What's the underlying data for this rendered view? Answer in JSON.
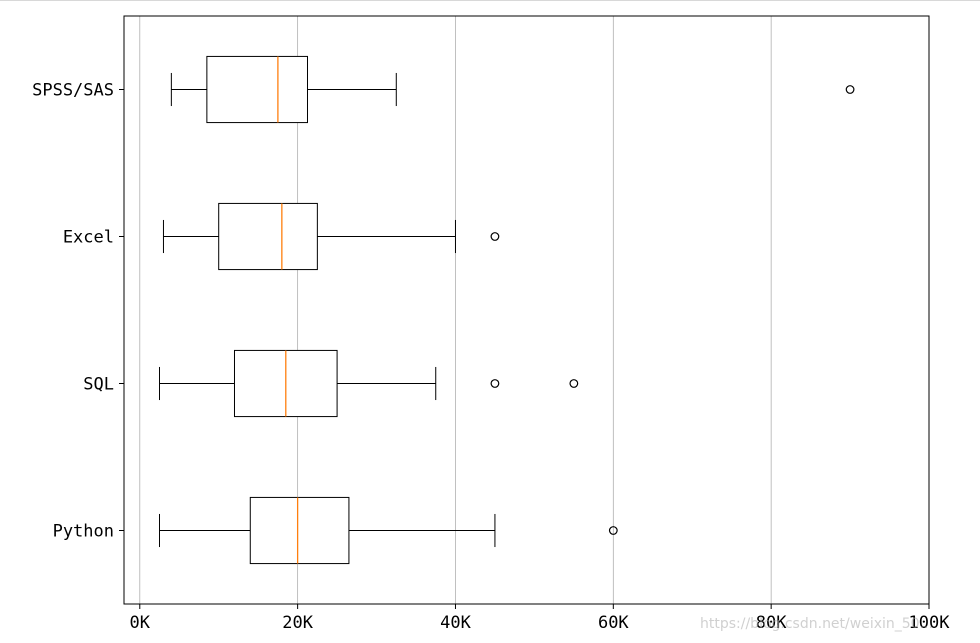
{
  "chart_data": {
    "type": "boxplot",
    "orientation": "horizontal",
    "title": "",
    "xlabel": "",
    "ylabel": "",
    "xlim": [
      -2000,
      100000
    ],
    "x_ticks": [
      0,
      20000,
      40000,
      60000,
      80000,
      100000
    ],
    "x_tick_labels": [
      "0K",
      "20K",
      "40K",
      "60K",
      "80K",
      "100K"
    ],
    "grid": "vertical",
    "categories": [
      "Python",
      "SQL",
      "Excel",
      "SPSS/SAS"
    ],
    "boxes": [
      {
        "label": "Python",
        "whisker_low": 2500,
        "q1": 14000,
        "median": 20000,
        "q3": 26500,
        "whisker_high": 45000,
        "outliers": [
          60000
        ]
      },
      {
        "label": "SQL",
        "whisker_low": 2500,
        "q1": 12000,
        "median": 18500,
        "q3": 25000,
        "whisker_high": 37500,
        "outliers": [
          45000,
          55000
        ]
      },
      {
        "label": "Excel",
        "whisker_low": 3000,
        "q1": 10000,
        "median": 18000,
        "q3": 22500,
        "whisker_high": 40000,
        "outliers": [
          45000
        ]
      },
      {
        "label": "SPSS/SAS",
        "whisker_low": 4000,
        "q1": 8500,
        "median": 17500,
        "q3": 21250,
        "whisker_high": 32500,
        "outliers": [
          90000
        ]
      }
    ],
    "colors": {
      "box": "#000000",
      "median": "#ff7f0e",
      "grid": "#b0b0b0",
      "outlier": "#000000"
    }
  },
  "watermark": "https://blog.csdn.net/weixin_50..."
}
